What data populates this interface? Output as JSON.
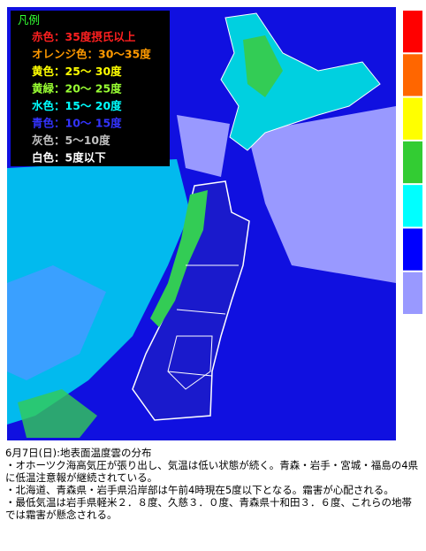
{
  "legend": {
    "title": "凡例",
    "title_color": "#33ff33",
    "items": [
      {
        "label": "赤色：35度摂氏以上",
        "color": "#ff2020"
      },
      {
        "label": "オレンジ色：30～35度",
        "color": "#ff9900"
      },
      {
        "label": "黄色：25～ 30度",
        "color": "#ffff00"
      },
      {
        "label": "黄緑：20～ 25度",
        "color": "#99ff33"
      },
      {
        "label": "水色：15～ 20度",
        "color": "#00ffff"
      },
      {
        "label": "青色：10～ 15度",
        "color": "#3333ff"
      },
      {
        "label": "灰色：5～10度",
        "color": "#c0c0c0"
      },
      {
        "label": "白色：5度以下",
        "color": "#ffffff"
      }
    ]
  },
  "colorbar": [
    "#ff0000",
    "#ff6600",
    "#ffff00",
    "#33cc33",
    "#00ffff",
    "#0000ff",
    "#9999ff"
  ],
  "caption": {
    "title": "6月7日(日):地表面温度雲の分布",
    "notes": [
      "・オホーツク海高気圧が張り出し、気温は低い状態が続く。青森・岩手・宮城・福島の4県に低温注意報が継続されている。",
      "・北海道、青森県・岩手県沿岸部は午前4時現在5度以下となる。霜害が心配される。",
      "・最低気温は岩手県軽米２．８度、久慈３．０度、青森県十和田３．６度、これらの地帯では霜害が懸念される。"
    ]
  }
}
